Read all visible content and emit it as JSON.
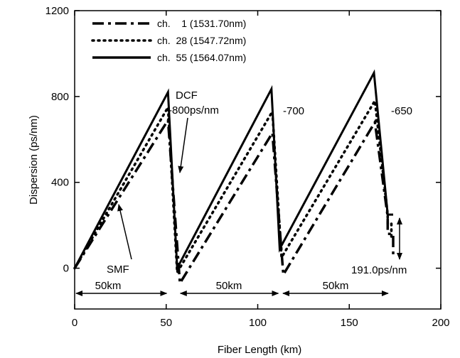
{
  "chart_data": {
    "type": "line",
    "xlabel": "Fiber Length (km)",
    "ylabel": "Dispersion (ps/nm)",
    "xlim": [
      0,
      200
    ],
    "ylim": [
      -190,
      1200
    ],
    "xticks": [
      0,
      50,
      100,
      150,
      200
    ],
    "yticks": [
      0,
      400,
      800,
      1200
    ],
    "grid": false,
    "legend_position": "top-left",
    "series": [
      {
        "name": "ch.    1 (1531.70nm)",
        "style": "dash-dot",
        "x": [
          0,
          51,
          57.5,
          108,
          114,
          164,
          171,
          171,
          174,
          174
        ],
        "y": [
          0,
          690,
          -70,
          630,
          -30,
          680,
          240,
          160,
          160,
          50
        ]
      },
      {
        "name": "ch.  28 (1547.72nm)",
        "style": "dotted",
        "x": [
          0,
          51,
          56,
          108,
          113,
          164,
          171,
          171,
          173,
          173
        ],
        "y": [
          0,
          750,
          -20,
          730,
          50,
          780,
          250,
          210,
          210,
          130
        ]
      },
      {
        "name": "ch.  55 (1564.07nm)",
        "style": "solid",
        "x": [
          0,
          51,
          56,
          107.5,
          112,
          163.5,
          171,
          171,
          174
        ],
        "y": [
          0,
          820,
          0,
          835,
          90,
          910,
          250,
          250,
          250
        ]
      }
    ],
    "annotations": {
      "dcf": "DCF",
      "dcf_value": "-800ps/nm",
      "dcf2_value": "-700",
      "dcf3_value": "-650",
      "smf": "SMF",
      "span1": "50km",
      "span2": "50km",
      "span3": "50km",
      "residual": "191.0ps/nm"
    }
  }
}
